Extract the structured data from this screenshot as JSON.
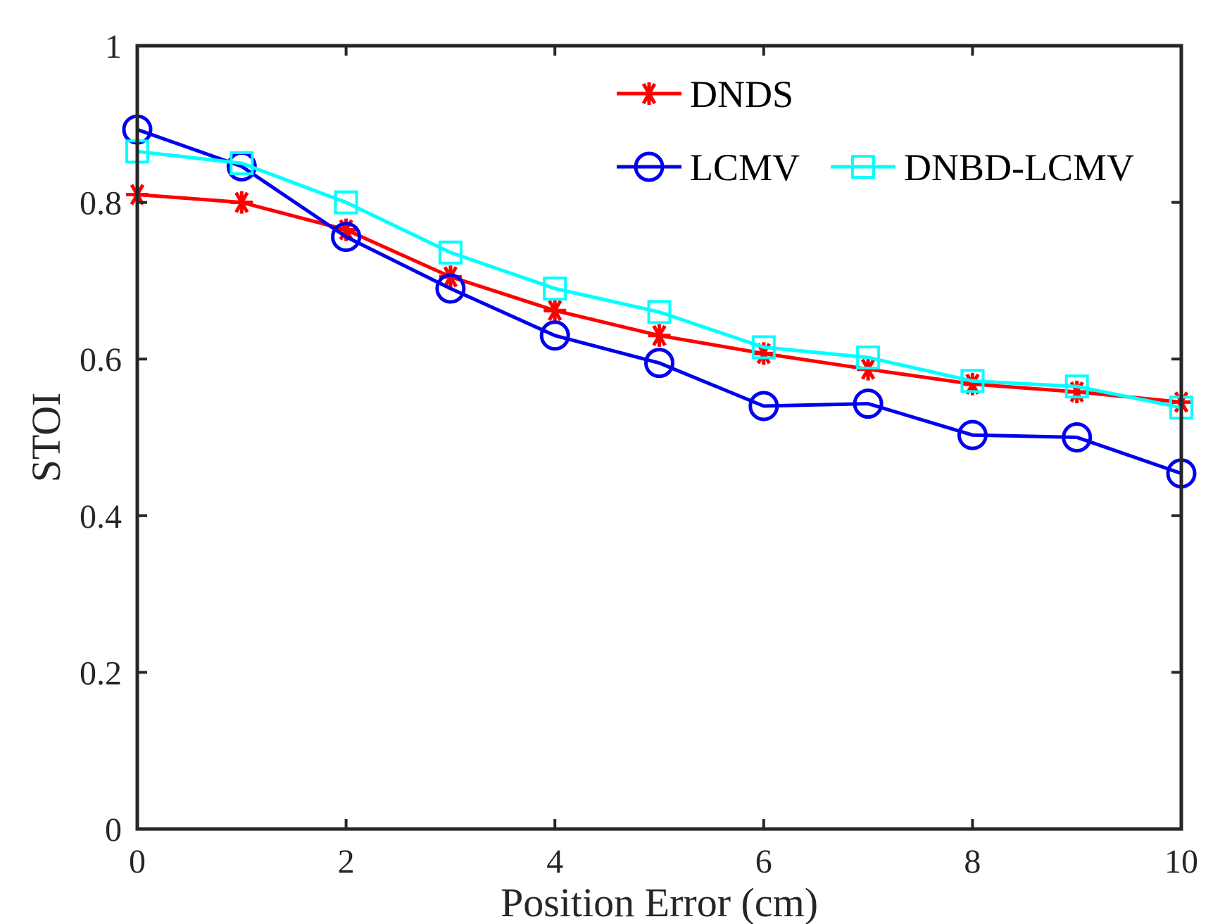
{
  "chart_data": {
    "type": "line",
    "title": "",
    "xlabel": "Position Error (cm)",
    "ylabel": "STOI",
    "xlim": [
      0,
      10
    ],
    "ylim": [
      0,
      1
    ],
    "xticks": [
      0,
      2,
      4,
      6,
      8,
      10
    ],
    "yticks": [
      0,
      0.2,
      0.4,
      0.6,
      0.8,
      1
    ],
    "xtick_labels": [
      "0",
      "2",
      "4",
      "6",
      "8",
      "10"
    ],
    "ytick_labels": [
      "0",
      "0.2",
      "0.4",
      "0.6",
      "0.8",
      "1"
    ],
    "grid": false,
    "legend_position": "top-right",
    "x": [
      0,
      1,
      2,
      3,
      4,
      5,
      6,
      7,
      8,
      9,
      10
    ],
    "series": [
      {
        "name": "DNDS",
        "color": "#ff0000",
        "marker": "asterisk",
        "values": [
          0.81,
          0.8,
          0.765,
          0.705,
          0.662,
          0.63,
          0.607,
          0.587,
          0.568,
          0.558,
          0.545
        ]
      },
      {
        "name": "LCMV",
        "color": "#0000ee",
        "marker": "circle",
        "values": [
          0.893,
          0.846,
          0.756,
          0.69,
          0.63,
          0.595,
          0.54,
          0.543,
          0.503,
          0.5,
          0.454
        ]
      },
      {
        "name": "DNBD-LCMV",
        "color": "#00ffff",
        "marker": "square",
        "values": [
          0.865,
          0.85,
          0.8,
          0.736,
          0.69,
          0.66,
          0.615,
          0.602,
          0.572,
          0.565,
          0.538
        ]
      }
    ]
  }
}
